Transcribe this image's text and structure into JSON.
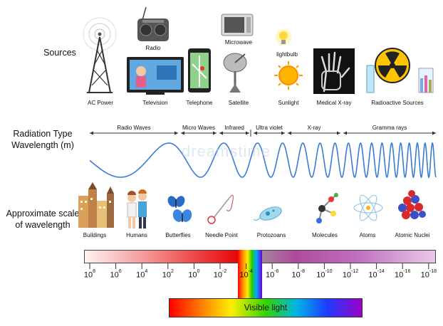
{
  "rows": {
    "sources": "Sources",
    "radiation_type_line1": "Radiation Type",
    "radiation_type_line2": "Wavelength (m)",
    "scale_line1": "Approximate scale",
    "scale_line2": "of wavelength"
  },
  "sources": [
    {
      "label": "AC Power",
      "icon": "transmission-tower-icon"
    },
    {
      "label": "Radio",
      "icon": "radio-icon"
    },
    {
      "label": "Television",
      "icon": "television-icon"
    },
    {
      "label": "Telephone",
      "icon": "telephone-icon"
    },
    {
      "label": "Microwave",
      "icon": "microwave-icon"
    },
    {
      "label": "Satellite",
      "icon": "satellite-dish-icon"
    },
    {
      "label": "lightbulb",
      "icon": "lightbulb-icon"
    },
    {
      "label": "Sunlight",
      "icon": "sun-icon"
    },
    {
      "label": "Medical X-ray",
      "icon": "xray-hand-icon"
    },
    {
      "label": "Radioactive Sources",
      "icon": "radioactive-icon"
    }
  ],
  "bands": [
    "Radio Waves",
    "Micro Waves",
    "Infrared",
    "Ultra violet",
    "X-ray",
    "Gramma rays"
  ],
  "scale_objects": [
    {
      "label": "Buildings",
      "icon": "buildings-icon"
    },
    {
      "label": "Humans",
      "icon": "humans-icon"
    },
    {
      "label": "Butterflies",
      "icon": "butterfly-icon"
    },
    {
      "label": "Needle Point",
      "icon": "needle-icon"
    },
    {
      "label": "Protozoans",
      "icon": "protozoan-icon"
    },
    {
      "label": "Molecules",
      "icon": "molecule-icon"
    },
    {
      "label": "Atoms",
      "icon": "atom-icon"
    },
    {
      "label": "Atomic Nuclei",
      "icon": "nucleus-icon"
    }
  ],
  "ticks": [
    {
      "base": "10",
      "exp": "8"
    },
    {
      "base": "10",
      "exp": "6"
    },
    {
      "base": "10",
      "exp": "4"
    },
    {
      "base": "10",
      "exp": "2"
    },
    {
      "base": "10",
      "exp": "0"
    },
    {
      "base": "10",
      "exp": "-2"
    },
    {
      "base": "10",
      "exp": "-4"
    },
    {
      "base": "10",
      "exp": "-6"
    },
    {
      "base": "10",
      "exp": "-8"
    },
    {
      "base": "10",
      "exp": "-10"
    },
    {
      "base": "10",
      "exp": "-12"
    },
    {
      "base": "10",
      "exp": "-14"
    },
    {
      "base": "10",
      "exp": "-16"
    },
    {
      "base": "10",
      "exp": "-18"
    }
  ],
  "visible_light": "Visible light",
  "watermark": "dreamstime",
  "colors": {
    "wave": "#3a7bd5",
    "visible_red": "#ff0000",
    "visible_violet": "#9a00c8"
  }
}
